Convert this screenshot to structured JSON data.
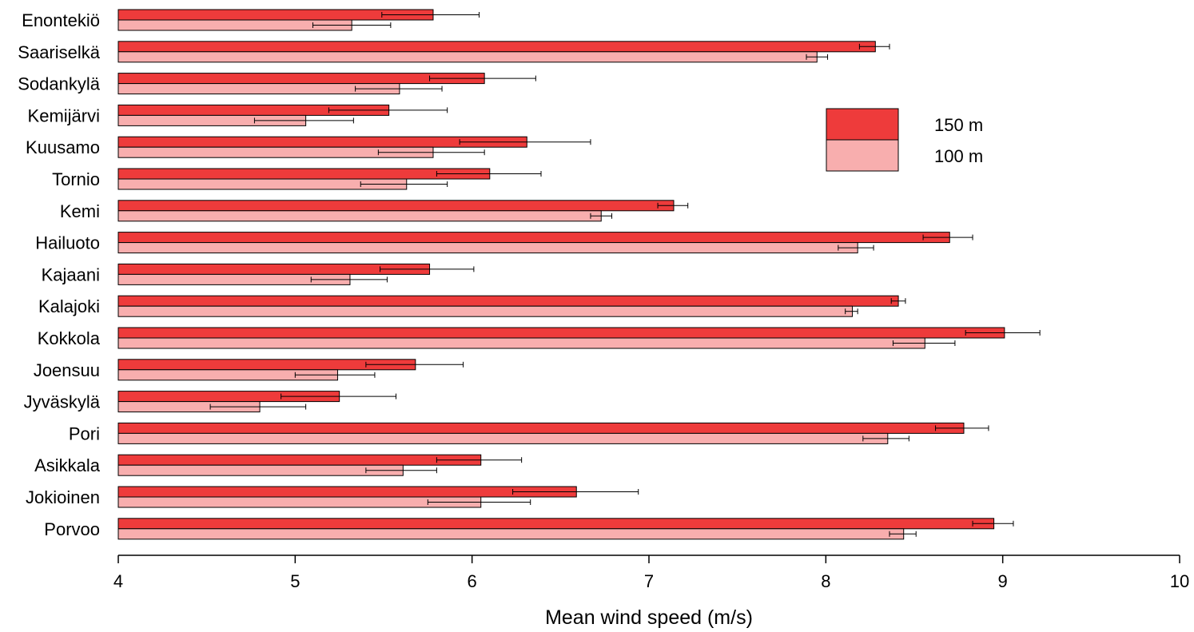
{
  "chart_data": {
    "type": "bar",
    "orientation": "horizontal",
    "title": "",
    "xlabel": "Mean wind speed (m/s)",
    "ylabel": "",
    "xlim": [
      4,
      10
    ],
    "xticks": [
      "4",
      "5",
      "6",
      "7",
      "8",
      "9",
      "10"
    ],
    "grid": false,
    "legend_position": "top-right",
    "categories": [
      "Enontekiö",
      "Saariselkä",
      "Sodankylä",
      "Kemijärvi",
      "Kuusamo",
      "Tornio",
      "Kemi",
      "Hailuoto",
      "Kajaani",
      "Kalajoki",
      "Kokkola",
      "Joensuu",
      "Jyväskylä",
      "Pori",
      "Asikkala",
      "Jokioinen",
      "Porvoo"
    ],
    "series": [
      {
        "name": "150 m",
        "color": "#ee3b3b",
        "values": [
          5.78,
          8.28,
          6.07,
          5.53,
          6.31,
          6.1,
          7.14,
          8.7,
          5.76,
          8.41,
          9.01,
          5.68,
          5.25,
          8.78,
          6.05,
          6.59,
          8.95
        ],
        "err_low": [
          5.49,
          8.19,
          5.76,
          5.19,
          5.93,
          5.8,
          7.05,
          8.55,
          5.48,
          8.37,
          8.79,
          5.4,
          4.92,
          8.62,
          5.8,
          6.23,
          8.83
        ],
        "err_high": [
          6.04,
          8.36,
          6.36,
          5.86,
          6.67,
          6.39,
          7.22,
          8.83,
          6.01,
          8.45,
          9.21,
          5.95,
          5.57,
          8.92,
          6.28,
          6.94,
          9.06
        ]
      },
      {
        "name": "100 m",
        "color": "#f8aeae",
        "values": [
          5.32,
          7.95,
          5.59,
          5.06,
          5.78,
          5.63,
          6.73,
          8.18,
          5.31,
          8.15,
          8.56,
          5.24,
          4.8,
          8.35,
          5.61,
          6.05,
          8.44
        ],
        "err_low": [
          5.1,
          7.89,
          5.34,
          4.77,
          5.47,
          5.37,
          6.67,
          8.07,
          5.09,
          8.11,
          8.38,
          5.0,
          4.52,
          8.21,
          5.4,
          5.75,
          8.36
        ],
        "err_high": [
          5.54,
          8.01,
          5.83,
          5.33,
          6.07,
          5.86,
          6.79,
          8.27,
          5.52,
          8.18,
          8.73,
          5.45,
          5.06,
          8.47,
          5.8,
          6.33,
          8.51
        ]
      }
    ]
  }
}
